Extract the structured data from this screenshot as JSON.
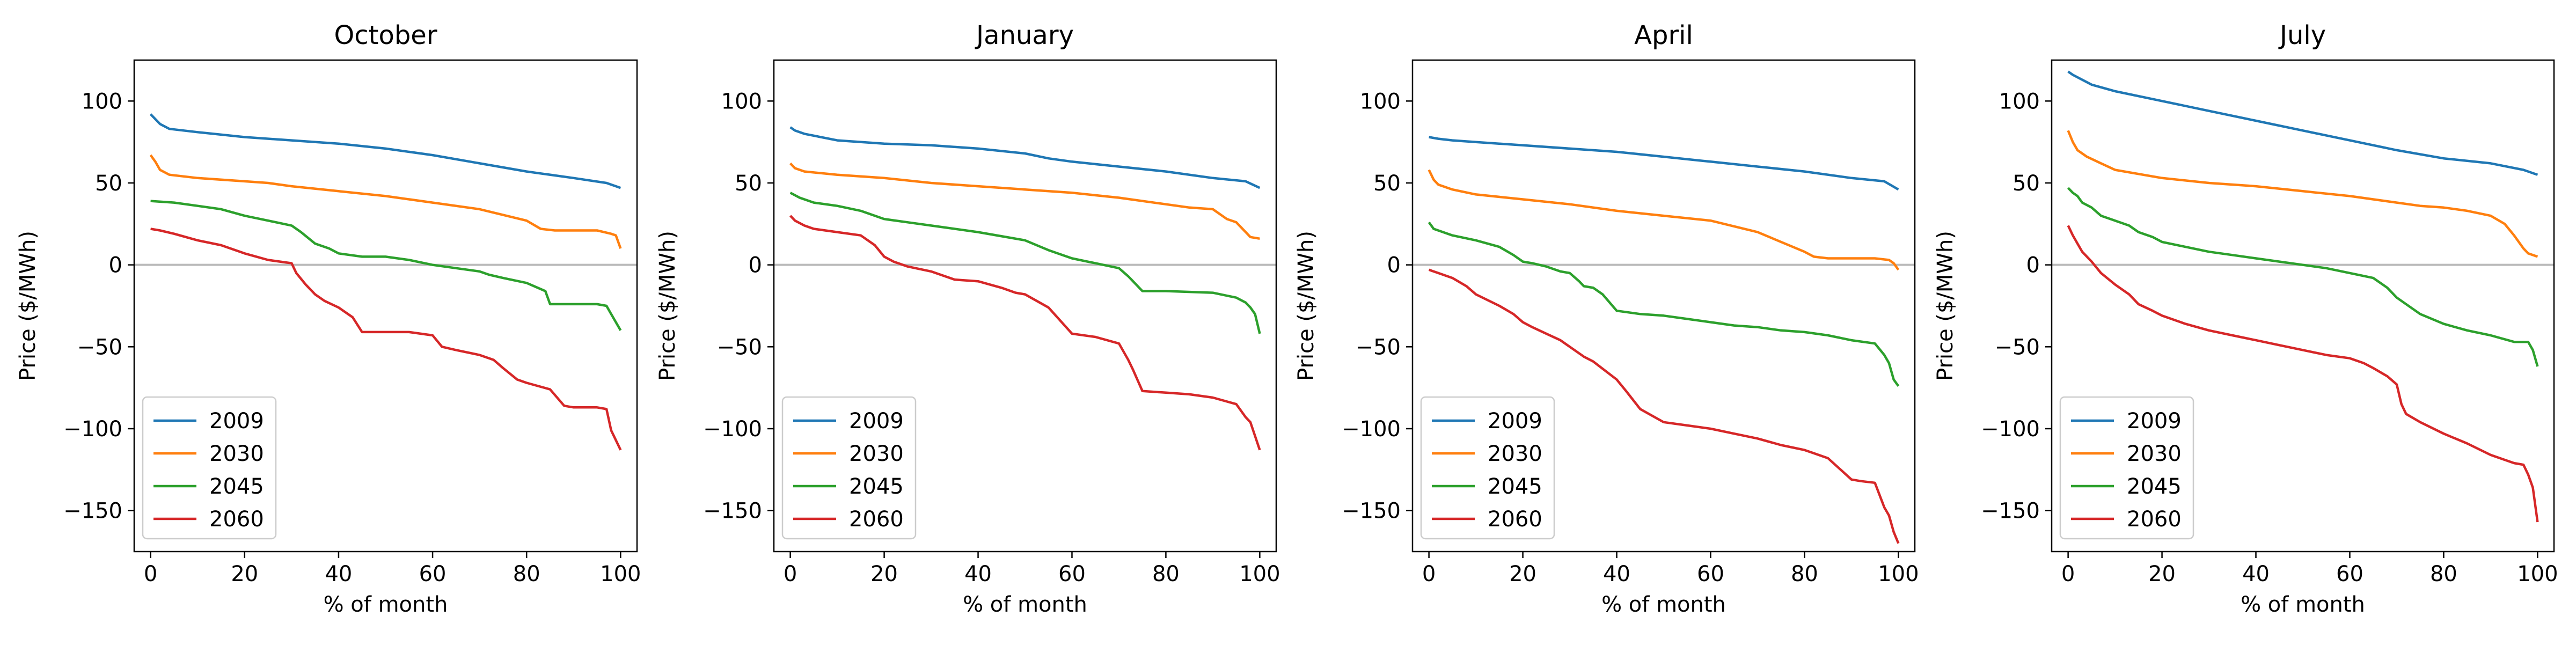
{
  "figure": {
    "colors": {
      "2009": "#1f77b4",
      "2030": "#ff7f0e",
      "2045": "#2ca02c",
      "2060": "#d62728",
      "zero_line": "#bbbbbb"
    }
  },
  "chart_data": [
    {
      "type": "line",
      "title": "October",
      "xlabel": "% of month",
      "ylabel": "Price ($/MWh)",
      "xlim": [
        -3.5,
        103.5
      ],
      "ylim": [
        -175,
        125
      ],
      "xticks": [
        0,
        20,
        40,
        60,
        80,
        100
      ],
      "yticks": [
        -150,
        -100,
        -50,
        0,
        50,
        100
      ],
      "reference_line_y": 0,
      "grid": false,
      "legend": "lower-left",
      "series": [
        {
          "name": "2009",
          "x": [
            0,
            1,
            2,
            4,
            10,
            20,
            30,
            40,
            50,
            60,
            70,
            80,
            90,
            97,
            100
          ],
          "y": [
            92,
            89,
            86,
            83,
            81,
            78,
            76,
            74,
            71,
            67,
            62,
            57,
            53,
            50,
            47
          ]
        },
        {
          "name": "2030",
          "x": [
            0,
            1,
            2,
            4,
            10,
            20,
            25,
            30,
            40,
            50,
            60,
            70,
            80,
            83,
            86,
            88,
            95,
            98,
            99,
            100
          ],
          "y": [
            67,
            63,
            58,
            55,
            53,
            51,
            50,
            48,
            45,
            42,
            38,
            34,
            27,
            22,
            21,
            21,
            21,
            19,
            18,
            10
          ]
        },
        {
          "name": "2045",
          "x": [
            0,
            5,
            10,
            15,
            20,
            25,
            30,
            32,
            35,
            38,
            40,
            45,
            50,
            55,
            60,
            65,
            70,
            72,
            75,
            80,
            84,
            85,
            90,
            95,
            97,
            98,
            99,
            100
          ],
          "y": [
            39,
            38,
            36,
            34,
            30,
            27,
            24,
            20,
            13,
            10,
            7,
            5,
            5,
            3,
            0,
            -2,
            -4,
            -6,
            -8,
            -11,
            -16,
            -24,
            -24,
            -24,
            -25,
            -30,
            -35,
            -40
          ]
        },
        {
          "name": "2060",
          "x": [
            0,
            2,
            5,
            10,
            15,
            20,
            25,
            30,
            31,
            33,
            35,
            37,
            40,
            43,
            45,
            50,
            55,
            60,
            62,
            65,
            70,
            73,
            75,
            78,
            80,
            85,
            88,
            90,
            95,
            97,
            98,
            99,
            100
          ],
          "y": [
            22,
            21,
            19,
            15,
            12,
            7,
            3,
            1,
            -5,
            -12,
            -18,
            -22,
            -26,
            -32,
            -41,
            -41,
            -41,
            -43,
            -50,
            -52,
            -55,
            -58,
            -63,
            -70,
            -72,
            -76,
            -86,
            -87,
            -87,
            -88,
            -101,
            -107,
            -113
          ]
        }
      ]
    },
    {
      "type": "line",
      "title": "January",
      "xlabel": "% of month",
      "ylabel": "Price ($/MWh)",
      "xlim": [
        -3.5,
        103.5
      ],
      "ylim": [
        -175,
        125
      ],
      "xticks": [
        0,
        20,
        40,
        60,
        80,
        100
      ],
      "yticks": [
        -150,
        -100,
        -50,
        0,
        50,
        100
      ],
      "reference_line_y": 0,
      "grid": false,
      "legend": "lower-left",
      "series": [
        {
          "name": "2009",
          "x": [
            0,
            1,
            3,
            10,
            20,
            30,
            40,
            50,
            55,
            60,
            70,
            80,
            90,
            97,
            100
          ],
          "y": [
            84,
            82,
            80,
            76,
            74,
            73,
            71,
            68,
            65,
            63,
            60,
            57,
            53,
            51,
            47
          ]
        },
        {
          "name": "2030",
          "x": [
            0,
            1,
            3,
            10,
            20,
            30,
            40,
            50,
            60,
            70,
            80,
            85,
            90,
            93,
            95,
            97,
            98,
            100
          ],
          "y": [
            62,
            59,
            57,
            55,
            53,
            50,
            48,
            46,
            44,
            41,
            37,
            35,
            34,
            28,
            26,
            20,
            17,
            16
          ]
        },
        {
          "name": "2045",
          "x": [
            0,
            2,
            5,
            10,
            15,
            20,
            25,
            30,
            40,
            50,
            55,
            60,
            65,
            70,
            72,
            73,
            75,
            80,
            90,
            95,
            97,
            98,
            99,
            100
          ],
          "y": [
            44,
            41,
            38,
            36,
            33,
            28,
            26,
            24,
            20,
            15,
            9,
            4,
            1,
            -2,
            -7,
            -10,
            -16,
            -16,
            -17,
            -20,
            -23,
            -26,
            -30,
            -42
          ]
        },
        {
          "name": "2060",
          "x": [
            0,
            1,
            3,
            5,
            10,
            15,
            18,
            20,
            22,
            25,
            30,
            35,
            40,
            45,
            48,
            50,
            55,
            60,
            65,
            70,
            72,
            73,
            75,
            80,
            85,
            90,
            95,
            97,
            98,
            100
          ],
          "y": [
            30,
            27,
            24,
            22,
            20,
            18,
            12,
            5,
            2,
            -1,
            -4,
            -9,
            -10,
            -14,
            -17,
            -18,
            -26,
            -42,
            -44,
            -48,
            -58,
            -64,
            -77,
            -78,
            -79,
            -81,
            -85,
            -93,
            -96,
            -113
          ]
        }
      ]
    },
    {
      "type": "line",
      "title": "April",
      "xlabel": "% of month",
      "ylabel": "Price ($/MWh)",
      "xlim": [
        -3.5,
        103.5
      ],
      "ylim": [
        -175,
        125
      ],
      "xticks": [
        0,
        20,
        40,
        60,
        80,
        100
      ],
      "yticks": [
        -150,
        -100,
        -50,
        0,
        50,
        100
      ],
      "reference_line_y": 0,
      "grid": false,
      "legend": "lower-left",
      "series": [
        {
          "name": "2009",
          "x": [
            0,
            2,
            5,
            10,
            20,
            30,
            40,
            50,
            60,
            70,
            80,
            90,
            97,
            100
          ],
          "y": [
            78,
            77,
            76,
            75,
            73,
            71,
            69,
            66,
            63,
            60,
            57,
            53,
            51,
            46
          ]
        },
        {
          "name": "2030",
          "x": [
            0,
            1,
            2,
            5,
            10,
            20,
            30,
            40,
            50,
            60,
            70,
            75,
            80,
            82,
            85,
            90,
            95,
            98,
            99,
            100
          ],
          "y": [
            58,
            52,
            49,
            46,
            43,
            40,
            37,
            33,
            30,
            27,
            20,
            14,
            8,
            5,
            4,
            4,
            4,
            3,
            1,
            -3
          ]
        },
        {
          "name": "2045",
          "x": [
            0,
            1,
            3,
            5,
            10,
            15,
            18,
            20,
            22,
            25,
            28,
            30,
            32,
            33,
            35,
            37,
            40,
            45,
            50,
            55,
            60,
            65,
            70,
            75,
            80,
            85,
            90,
            95,
            97,
            98,
            99,
            100
          ],
          "y": [
            26,
            22,
            20,
            18,
            15,
            11,
            6,
            2,
            1,
            -1,
            -4,
            -5,
            -10,
            -13,
            -14,
            -18,
            -28,
            -30,
            -31,
            -33,
            -35,
            -37,
            -38,
            -40,
            -41,
            -43,
            -46,
            -48,
            -55,
            -60,
            -70,
            -74
          ]
        },
        {
          "name": "2060",
          "x": [
            0,
            2,
            5,
            8,
            10,
            15,
            18,
            20,
            22,
            25,
            28,
            30,
            33,
            35,
            40,
            42,
            45,
            50,
            55,
            60,
            65,
            70,
            75,
            80,
            82,
            85,
            90,
            92,
            95,
            97,
            98,
            99,
            100
          ],
          "y": [
            -3,
            -5,
            -8,
            -13,
            -18,
            -25,
            -30,
            -35,
            -38,
            -42,
            -46,
            -50,
            -56,
            -59,
            -70,
            -77,
            -88,
            -96,
            -98,
            -100,
            -103,
            -106,
            -110,
            -113,
            -115,
            -118,
            -131,
            -132,
            -133,
            -148,
            -153,
            -163,
            -170
          ]
        }
      ]
    },
    {
      "type": "line",
      "title": "July",
      "xlabel": "% of month",
      "ylabel": "Price ($/MWh)",
      "xlim": [
        -3.5,
        103.5
      ],
      "ylim": [
        -175,
        125
      ],
      "xticks": [
        0,
        20,
        40,
        60,
        80,
        100
      ],
      "yticks": [
        -150,
        -100,
        -50,
        0,
        50,
        100
      ],
      "reference_line_y": 0,
      "grid": false,
      "legend": "lower-left",
      "series": [
        {
          "name": "2009",
          "x": [
            0,
            1,
            3,
            5,
            10,
            20,
            30,
            40,
            50,
            60,
            70,
            80,
            90,
            97,
            100
          ],
          "y": [
            118,
            116,
            113,
            110,
            106,
            100,
            94,
            88,
            82,
            76,
            70,
            65,
            62,
            58,
            55
          ]
        },
        {
          "name": "2030",
          "x": [
            0,
            1,
            2,
            4,
            7,
            10,
            20,
            30,
            40,
            50,
            60,
            65,
            70,
            75,
            80,
            85,
            90,
            93,
            95,
            97,
            98,
            100
          ],
          "y": [
            82,
            75,
            70,
            66,
            62,
            58,
            53,
            50,
            48,
            45,
            42,
            40,
            38,
            36,
            35,
            33,
            30,
            25,
            18,
            10,
            7,
            5
          ]
        },
        {
          "name": "2045",
          "x": [
            0,
            1,
            2,
            3,
            5,
            7,
            10,
            13,
            15,
            18,
            20,
            25,
            30,
            35,
            40,
            45,
            50,
            55,
            60,
            65,
            68,
            70,
            75,
            80,
            85,
            90,
            95,
            98,
            99,
            100
          ],
          "y": [
            47,
            44,
            42,
            38,
            35,
            30,
            27,
            24,
            20,
            17,
            14,
            11,
            8,
            6,
            4,
            2,
            0,
            -2,
            -5,
            -8,
            -14,
            -20,
            -30,
            -36,
            -40,
            -43,
            -47,
            -47,
            -52,
            -62
          ]
        },
        {
          "name": "2060",
          "x": [
            0,
            1,
            2,
            3,
            5,
            7,
            10,
            13,
            15,
            18,
            20,
            25,
            30,
            35,
            40,
            45,
            50,
            55,
            60,
            63,
            65,
            68,
            70,
            71,
            72,
            75,
            80,
            85,
            90,
            95,
            97,
            98,
            99,
            100
          ],
          "y": [
            24,
            18,
            13,
            8,
            2,
            -5,
            -12,
            -18,
            -24,
            -28,
            -31,
            -36,
            -40,
            -43,
            -46,
            -49,
            -52,
            -55,
            -57,
            -60,
            -63,
            -68,
            -73,
            -85,
            -91,
            -96,
            -103,
            -109,
            -116,
            -121,
            -122,
            -128,
            -136,
            -157
          ]
        }
      ]
    }
  ]
}
